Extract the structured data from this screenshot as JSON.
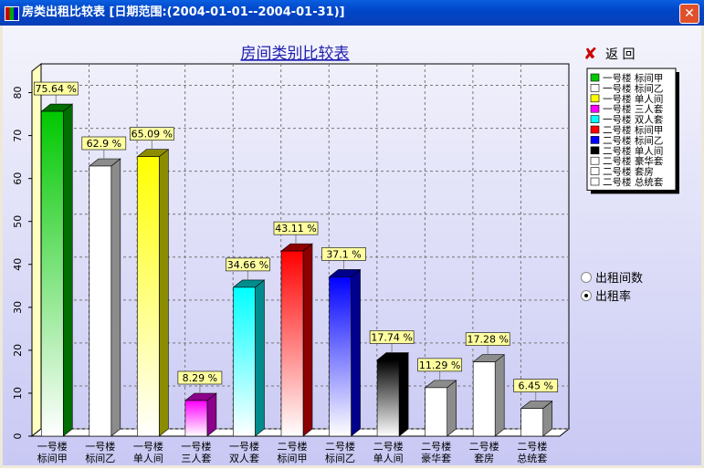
{
  "window": {
    "title": "房类出租比较表 [日期范围:(2004-01-01--2004-01-31)]"
  },
  "controls": {
    "return_button": "返 回",
    "options": [
      "出租间数",
      "出租率"
    ],
    "selected_option": 1
  },
  "chart_data": {
    "type": "bar",
    "title": "房间类别比较表",
    "categories": [
      "一号楼 标间甲",
      "一号楼 标间乙",
      "一号楼 单人间",
      "一号楼 三人套",
      "一号楼 双人套",
      "二号楼 标间甲",
      "二号楼 标间乙",
      "二号楼 单人间",
      "二号楼 豪华套",
      "二号楼 套房",
      "二号楼 总统套"
    ],
    "values": [
      75.64,
      62.9,
      65.09,
      8.29,
      34.66,
      43.11,
      37.1,
      17.74,
      11.29,
      17.28,
      6.45
    ],
    "value_labels": [
      "75.64 %",
      "62.9 %",
      "65.09 %",
      "8.29 %",
      "34.66 %",
      "43.11 %",
      "37.1 %",
      "17.74 %",
      "11.29 %",
      "17.28 %",
      "6.45 %"
    ],
    "colors": [
      "#00c800",
      "#ffffff",
      "#ffff00",
      "#ff00ff",
      "#00ffff",
      "#ff0000",
      "#0000ff",
      "#000000",
      "#ffffff",
      "#ffffff",
      "#ffffff"
    ],
    "ylim": [
      0,
      85
    ],
    "yticks": [
      0,
      10,
      20,
      30,
      40,
      50,
      60,
      70,
      80
    ],
    "grid": true,
    "legend": "right"
  }
}
